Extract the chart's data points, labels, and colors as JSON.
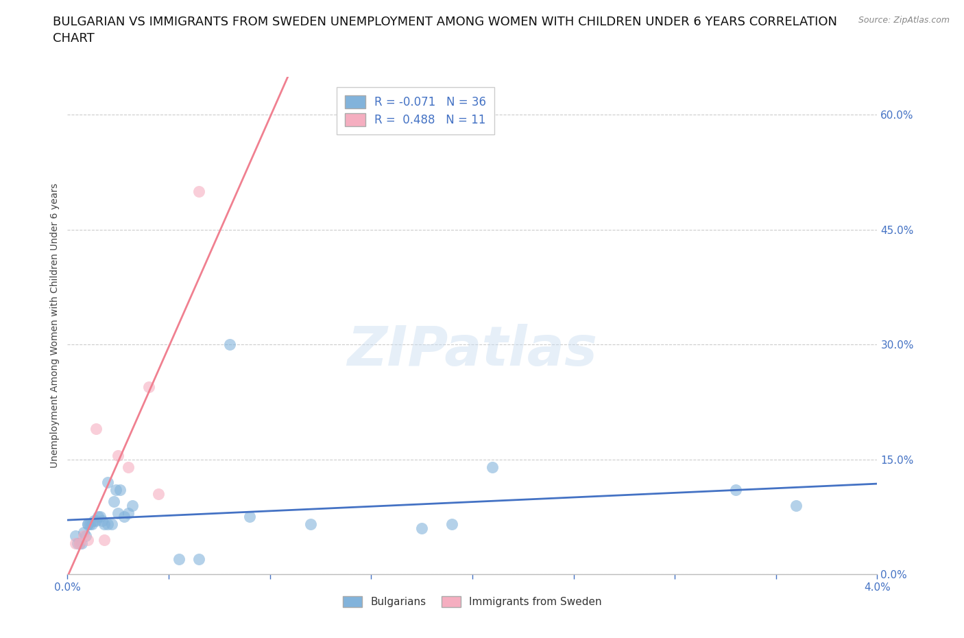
{
  "title": "BULGARIAN VS IMMIGRANTS FROM SWEDEN UNEMPLOYMENT AMONG WOMEN WITH CHILDREN UNDER 6 YEARS CORRELATION\nCHART",
  "source": "Source: ZipAtlas.com",
  "ylabel_label": "Unemployment Among Women with Children Under 6 years",
  "xlim": [
    0.0,
    0.04
  ],
  "ylim": [
    0.0,
    0.65
  ],
  "xticks": [
    0.0,
    0.005,
    0.01,
    0.015,
    0.02,
    0.025,
    0.03,
    0.035,
    0.04
  ],
  "ytick_positions": [
    0.0,
    0.15,
    0.3,
    0.45,
    0.6
  ],
  "ytick_labels": [
    "0.0%",
    "15.0%",
    "30.0%",
    "45.0%",
    "60.0%"
  ],
  "xtick_labels": [
    "0.0%",
    "",
    "",
    "",
    "",
    "",
    "",
    "",
    "4.0%"
  ],
  "bulgarians_x": [
    0.0004,
    0.0005,
    0.0006,
    0.0007,
    0.0008,
    0.0009,
    0.001,
    0.001,
    0.0011,
    0.0012,
    0.0013,
    0.0014,
    0.0015,
    0.0016,
    0.0017,
    0.0018,
    0.002,
    0.002,
    0.0022,
    0.0023,
    0.0024,
    0.0025,
    0.0026,
    0.0028,
    0.003,
    0.0032,
    0.0055,
    0.0065,
    0.008,
    0.009,
    0.012,
    0.021,
    0.033,
    0.036,
    0.0175,
    0.019
  ],
  "bulgarians_y": [
    0.05,
    0.04,
    0.04,
    0.04,
    0.055,
    0.05,
    0.065,
    0.065,
    0.065,
    0.065,
    0.07,
    0.07,
    0.075,
    0.075,
    0.07,
    0.065,
    0.065,
    0.12,
    0.065,
    0.095,
    0.11,
    0.08,
    0.11,
    0.075,
    0.08,
    0.09,
    0.02,
    0.02,
    0.3,
    0.075,
    0.065,
    0.14,
    0.11,
    0.09,
    0.06,
    0.065
  ],
  "immigrants_x": [
    0.0004,
    0.0006,
    0.0008,
    0.001,
    0.0014,
    0.0018,
    0.0025,
    0.003,
    0.004,
    0.0045,
    0.0065
  ],
  "immigrants_y": [
    0.04,
    0.04,
    0.05,
    0.045,
    0.19,
    0.045,
    0.155,
    0.14,
    0.245,
    0.105,
    0.5
  ],
  "bulgarians_R": -0.071,
  "bulgarians_N": 36,
  "immigrants_R": 0.488,
  "immigrants_N": 11,
  "color_bulgarians": "#82B3DB",
  "color_immigrants": "#F5AEC0",
  "line_color_bulgarians": "#4472C4",
  "line_color_immigrants": "#F08090",
  "trendline_color_dashed": "#C8A0A8",
  "background_color": "#FFFFFF",
  "title_fontsize": 13,
  "axis_label_fontsize": 10,
  "tick_fontsize": 11,
  "legend_fontsize": 12,
  "source_fontsize": 9
}
